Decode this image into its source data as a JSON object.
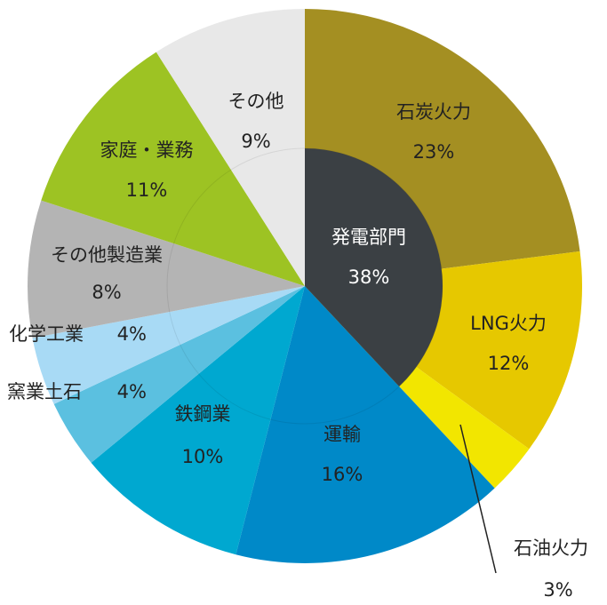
{
  "chart_data": {
    "type": "pie",
    "categories": [
      "石炭火力",
      "LNG火力",
      "石油火力",
      "運輸",
      "鉄鋼業",
      "窯業土石",
      "化学工業",
      "その他製造業",
      "家庭・業務",
      "その他"
    ],
    "values": [
      23,
      12,
      3,
      16,
      10,
      4,
      4,
      8,
      11,
      9
    ],
    "value_labels": [
      "23%",
      "12%",
      "3%",
      "16%",
      "10%",
      "4%",
      "4%",
      "8%",
      "11%",
      "9%"
    ],
    "colors": [
      "#a48f22",
      "#e6c800",
      "#f2e600",
      "#0089c8",
      "#00a8d0",
      "#5bc0e0",
      "#a8daf5",
      "#b4b4b4",
      "#9dc323",
      "#e8e8e8"
    ],
    "inner": {
      "label": "発電部門",
      "value": 38,
      "value_label": "38%",
      "color": "#3b4044"
    }
  }
}
